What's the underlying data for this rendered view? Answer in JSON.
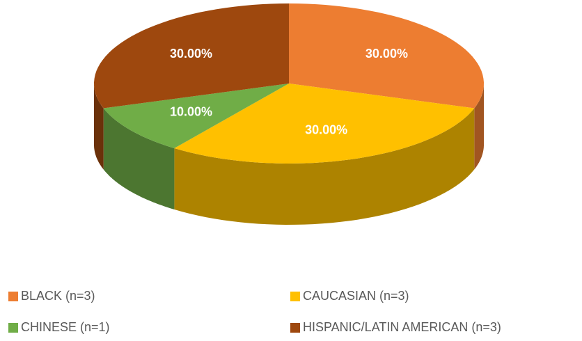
{
  "chart_data": {
    "type": "pie",
    "categories": [
      "BLACK (n=3)",
      "CAUCASIAN (n=3)",
      "CHINESE (n=1)",
      "HISPANIC/LATIN AMERICAN (n=3)"
    ],
    "values": [
      30,
      30,
      10,
      30
    ],
    "value_labels": [
      "30.00%",
      "30.00%",
      "10.00%",
      "30.00%"
    ],
    "colors": [
      "#ed7d31",
      "#ffc000",
      "#70ad47",
      "#9e480e"
    ]
  }
}
